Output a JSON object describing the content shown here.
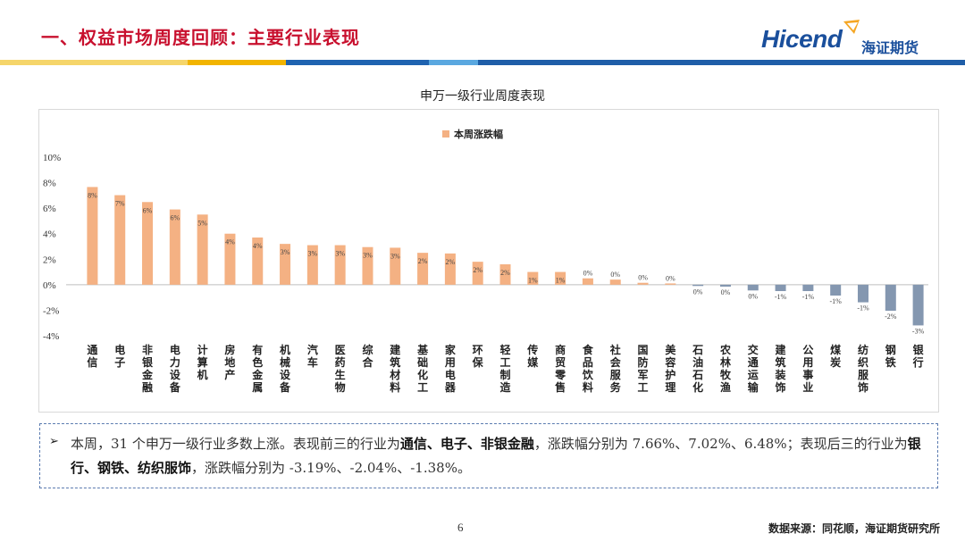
{
  "header": {
    "title": "一、权益市场周度回顾：主要行业表现",
    "logo_en": "Hicend",
    "logo_zh": "海证期货",
    "stripe_colors": [
      "#f5c400",
      "#f5c400",
      "#1f5ea8",
      "#5aa8e0",
      "#1f5ea8"
    ]
  },
  "chart_title": "申万一级行业周度表现",
  "chart_data": {
    "type": "bar",
    "series": [
      {
        "name": "本周涨跌幅",
        "color": "#f4b183",
        "negative_color": "#8497b0",
        "values": [
          7.66,
          7.02,
          6.48,
          5.9,
          5.5,
          4.0,
          3.7,
          3.2,
          3.1,
          3.1,
          2.95,
          2.9,
          2.5,
          2.45,
          1.8,
          1.6,
          1.0,
          1.0,
          0.5,
          0.4,
          0.15,
          0.1,
          -0.1,
          -0.15,
          -0.45,
          -0.5,
          -0.5,
          -0.85,
          -1.38,
          -2.04,
          -3.19
        ],
        "labels": [
          "8%",
          "7%",
          "6%",
          "6%",
          "5%",
          "4%",
          "4%",
          "3%",
          "3%",
          "3%",
          "3%",
          "3%",
          "2%",
          "2%",
          "2%",
          "2%",
          "1%",
          "1%",
          "0%",
          "0%",
          "0%",
          "0%",
          "0%",
          "0%",
          "0%",
          "-1%",
          "-1%",
          "-1%",
          "-1%",
          "-2%",
          "-3%"
        ]
      }
    ],
    "categories": [
      "通信",
      "电子",
      "非银金融",
      "电力设备",
      "计算机",
      "房地产",
      "有色金属",
      "机械设备",
      "汽车",
      "医药生物",
      "综合",
      "建筑材料",
      "基础化工",
      "家用电器",
      "环保",
      "轻工制造",
      "传媒",
      "商贸零售",
      "食品饮料",
      "社会服务",
      "国防军工",
      "美容护理",
      "石油石化",
      "农林牧渔",
      "交通运输",
      "建筑装饰",
      "公用事业",
      "煤炭",
      "纺织服饰",
      "钢铁",
      "银行"
    ],
    "y_ticks": [
      "10%",
      "8%",
      "6%",
      "4%",
      "2%",
      "0%",
      "-2%",
      "-4%"
    ],
    "ylim": [
      -4,
      10
    ],
    "legend_position": "top-center",
    "grid": false
  },
  "note": {
    "part1": "本周，31 个申万一级行业多数上涨。表现前三的行业为",
    "top3": "通信、电子、非银金融",
    "part2": "，涨跌幅分别为 7.66%、7.02%、6.48%；表现后三的行业为",
    "bottom3": "银行、钢铁、纺织服饰",
    "part3": "，涨跌幅分别为 -3.19%、-2.04%、-1.38%。"
  },
  "footer": {
    "page": "6",
    "source": "数据来源：同花顺，海证期货研究所"
  }
}
